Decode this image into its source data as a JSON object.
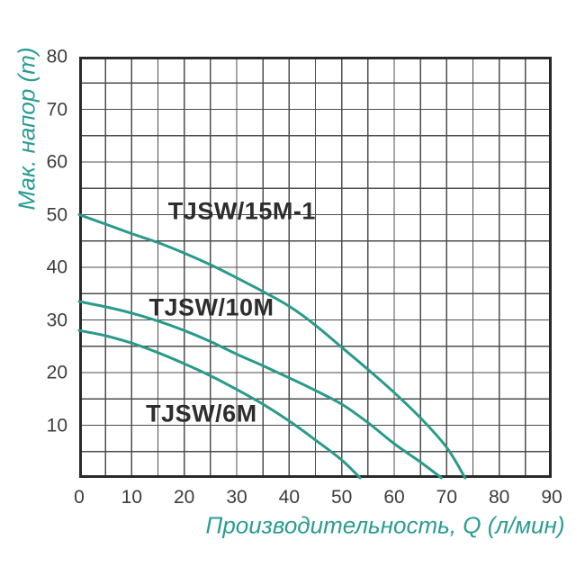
{
  "chart_data": {
    "type": "line",
    "title": "",
    "xlabel": "Производительность, Q (л/мин)",
    "ylabel": "Мак. напор (m)",
    "xlim": [
      0,
      90
    ],
    "ylim": [
      0,
      80
    ],
    "x_ticks": [
      0,
      10,
      20,
      30,
      40,
      50,
      60,
      70,
      80,
      90
    ],
    "y_ticks": [
      80,
      70,
      60,
      50,
      40,
      30,
      20,
      10
    ],
    "minor_grid_step": 5,
    "grid": true,
    "legend_position": "labels-on-chart",
    "series": [
      {
        "name": "TJSW/15M-1",
        "points": [
          [
            0,
            50
          ],
          [
            5,
            48.2
          ],
          [
            10,
            46.4
          ],
          [
            15,
            44.7
          ],
          [
            20,
            42.7
          ],
          [
            25,
            40.5
          ],
          [
            30,
            38
          ],
          [
            35,
            35.4
          ],
          [
            40,
            32.6
          ],
          [
            45,
            29
          ],
          [
            50,
            24.8
          ],
          [
            55,
            20.6
          ],
          [
            60,
            16.2
          ],
          [
            65,
            11.4
          ],
          [
            70,
            5.8
          ],
          [
            73.5,
            0
          ]
        ],
        "label_at": [
          31,
          50.6
        ]
      },
      {
        "name": "TJSW/10M",
        "points": [
          [
            0,
            33.5
          ],
          [
            5,
            32.5
          ],
          [
            10,
            31.3
          ],
          [
            15,
            29.8
          ],
          [
            20,
            28
          ],
          [
            25,
            25.9
          ],
          [
            30,
            23.5
          ],
          [
            35,
            21.3
          ],
          [
            40,
            19
          ],
          [
            45,
            16.6
          ],
          [
            50,
            14
          ],
          [
            55,
            10.5
          ],
          [
            60,
            6.5
          ],
          [
            65,
            3
          ],
          [
            69,
            0
          ]
        ],
        "label_at": [
          25.2,
          32.3
        ]
      },
      {
        "name": "TJSW/6M",
        "points": [
          [
            0,
            28
          ],
          [
            5,
            27
          ],
          [
            10,
            25.6
          ],
          [
            15,
            23.8
          ],
          [
            20,
            21.7
          ],
          [
            25,
            19.4
          ],
          [
            30,
            16.8
          ],
          [
            35,
            14
          ],
          [
            40,
            10.8
          ],
          [
            45,
            7.2
          ],
          [
            50,
            3.4
          ],
          [
            53.5,
            0
          ]
        ],
        "label_at": [
          23.3,
          12.1
        ]
      }
    ]
  },
  "colors": {
    "curve": "#2a9a8a",
    "axis_title_text": "#2a9c93",
    "tick_text": "#3c3c3c",
    "grid_line": "#4d4d4d",
    "plot_border": "#2a2a2a",
    "curve_label_text": "#2d2d2d",
    "background": "#ffffff"
  }
}
